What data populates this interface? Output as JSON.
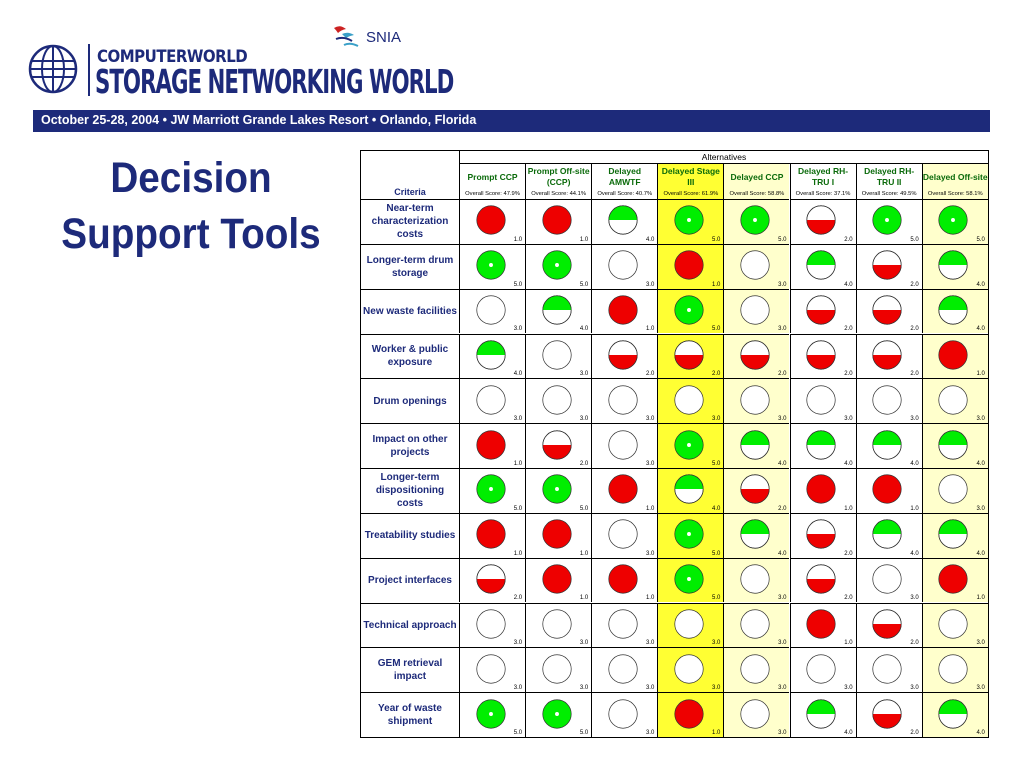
{
  "header": {
    "logo_line1": "COMPUTERWORLD",
    "logo_line2": "STORAGE NETWORKING WORLD",
    "partner_logo": "SNIA",
    "banner": "October 25-28, 2004 • JW Marriott Grande Lakes Resort • Orlando, Florida"
  },
  "slide": {
    "title_line1": "Decision",
    "title_line2": "Support Tools"
  },
  "colors": {
    "navy": "#1d2a7a",
    "good": "#00ee00",
    "bad": "#ee0000",
    "highlight": "#ffff33",
    "highlight_light": "#ffffcc"
  },
  "table": {
    "group_header": "Alternatives",
    "criteria_header": "Criteria",
    "alternatives": [
      {
        "name": "Prompt CCP",
        "score": "Overall Score: 47.9%",
        "bg": "none"
      },
      {
        "name": "Prompt Off-site (CCP)",
        "score": "Overall Score: 44.1%",
        "bg": "none"
      },
      {
        "name": "Delayed AMWTF",
        "score": "Overall Score: 40.7%",
        "bg": "none"
      },
      {
        "name": "Delayed Stage III",
        "score": "Overall Score: 61.9%",
        "bg": "strong"
      },
      {
        "name": "Delayed CCP",
        "score": "Overall Score: 58.8%",
        "bg": "light"
      },
      {
        "name": "Delayed RH-TRU I",
        "score": "Overall Score: 37.1%",
        "bg": "none"
      },
      {
        "name": "Delayed RH-TRU II",
        "score": "Overall Score: 49.5%",
        "bg": "none"
      },
      {
        "name": "Delayed Off-site",
        "score": "Overall Score: 58.1%",
        "bg": "light"
      }
    ],
    "criteria": [
      {
        "name": "Near-term characterization costs",
        "ratings": [
          [
            "red",
            "1.0"
          ],
          [
            "red",
            "1.0"
          ],
          [
            "green-top",
            "4.0"
          ],
          [
            "green-dot",
            "5.0"
          ],
          [
            "green-dot",
            "5.0"
          ],
          [
            "red-bottom",
            "2.0"
          ],
          [
            "green-dot",
            "5.0"
          ],
          [
            "green-dot",
            "5.0"
          ]
        ]
      },
      {
        "name": "Longer-term drum storage",
        "ratings": [
          [
            "green-dot",
            "5.0"
          ],
          [
            "green-dot",
            "5.0"
          ],
          [
            "empty",
            "3.0"
          ],
          [
            "red",
            "1.0"
          ],
          [
            "empty",
            "3.0"
          ],
          [
            "green-top",
            "4.0"
          ],
          [
            "red-bottom",
            "2.0"
          ],
          [
            "green-top",
            "4.0"
          ]
        ]
      },
      {
        "name": "New waste facilities",
        "ratings": [
          [
            "empty",
            "3.0"
          ],
          [
            "green-top",
            "4.0"
          ],
          [
            "red",
            "1.0"
          ],
          [
            "green-dot",
            "5.0"
          ],
          [
            "empty",
            "3.0"
          ],
          [
            "red-bottom",
            "2.0"
          ],
          [
            "red-bottom",
            "2.0"
          ],
          [
            "green-top",
            "4.0"
          ]
        ]
      },
      {
        "name": "Worker & public exposure",
        "ratings": [
          [
            "green-top",
            "4.0"
          ],
          [
            "empty",
            "3.0"
          ],
          [
            "red-bottom",
            "2.0"
          ],
          [
            "red-bottom",
            "2.0"
          ],
          [
            "red-bottom",
            "2.0"
          ],
          [
            "red-bottom",
            "2.0"
          ],
          [
            "red-bottom",
            "2.0"
          ],
          [
            "red",
            "1.0"
          ]
        ]
      },
      {
        "name": "Drum openings",
        "ratings": [
          [
            "empty",
            "3.0"
          ],
          [
            "empty",
            "3.0"
          ],
          [
            "empty",
            "3.0"
          ],
          [
            "empty",
            "3.0"
          ],
          [
            "empty",
            "3.0"
          ],
          [
            "empty",
            "3.0"
          ],
          [
            "empty",
            "3.0"
          ],
          [
            "empty",
            "3.0"
          ]
        ]
      },
      {
        "name": "Impact on other projects",
        "ratings": [
          [
            "red",
            "1.0"
          ],
          [
            "red-bottom",
            "2.0"
          ],
          [
            "empty",
            "3.0"
          ],
          [
            "green-dot",
            "5.0"
          ],
          [
            "green-top",
            "4.0"
          ],
          [
            "green-top",
            "4.0"
          ],
          [
            "green-top",
            "4.0"
          ],
          [
            "green-top",
            "4.0"
          ]
        ]
      },
      {
        "name": "Longer-term dispositioning costs",
        "ratings": [
          [
            "green-dot",
            "5.0"
          ],
          [
            "green-dot",
            "5.0"
          ],
          [
            "red",
            "1.0"
          ],
          [
            "green-top",
            "4.0"
          ],
          [
            "red-bottom",
            "2.0"
          ],
          [
            "red",
            "1.0"
          ],
          [
            "red",
            "1.0"
          ],
          [
            "empty",
            "3.0"
          ]
        ]
      },
      {
        "name": "Treatability studies",
        "ratings": [
          [
            "red",
            "1.0"
          ],
          [
            "red",
            "1.0"
          ],
          [
            "empty",
            "3.0"
          ],
          [
            "green-dot",
            "5.0"
          ],
          [
            "green-top",
            "4.0"
          ],
          [
            "red-bottom",
            "2.0"
          ],
          [
            "green-top",
            "4.0"
          ],
          [
            "green-top",
            "4.0"
          ]
        ]
      },
      {
        "name": "Project interfaces",
        "ratings": [
          [
            "red-bottom",
            "2.0"
          ],
          [
            "red",
            "1.0"
          ],
          [
            "red",
            "1.0"
          ],
          [
            "green-dot",
            "5.0"
          ],
          [
            "empty",
            "3.0"
          ],
          [
            "red-bottom",
            "2.0"
          ],
          [
            "empty",
            "3.0"
          ],
          [
            "red",
            "1.0"
          ]
        ]
      },
      {
        "name": "Technical approach",
        "ratings": [
          [
            "empty",
            "3.0"
          ],
          [
            "empty",
            "3.0"
          ],
          [
            "empty",
            "3.0"
          ],
          [
            "empty",
            "3.0"
          ],
          [
            "empty",
            "3.0"
          ],
          [
            "red",
            "1.0"
          ],
          [
            "red-bottom",
            "2.0"
          ],
          [
            "empty",
            "3.0"
          ]
        ]
      },
      {
        "name": "GEM retrieval impact",
        "ratings": [
          [
            "empty",
            "3.0"
          ],
          [
            "empty",
            "3.0"
          ],
          [
            "empty",
            "3.0"
          ],
          [
            "empty",
            "3.0"
          ],
          [
            "empty",
            "3.0"
          ],
          [
            "empty",
            "3.0"
          ],
          [
            "empty",
            "3.0"
          ],
          [
            "empty",
            "3.0"
          ]
        ]
      },
      {
        "name": "Year of waste shipment",
        "ratings": [
          [
            "green-dot",
            "5.0"
          ],
          [
            "green-dot",
            "5.0"
          ],
          [
            "empty",
            "3.0"
          ],
          [
            "red",
            "1.0"
          ],
          [
            "empty",
            "3.0"
          ],
          [
            "green-top",
            "4.0"
          ],
          [
            "red-bottom",
            "2.0"
          ],
          [
            "green-top",
            "4.0"
          ]
        ]
      }
    ]
  }
}
